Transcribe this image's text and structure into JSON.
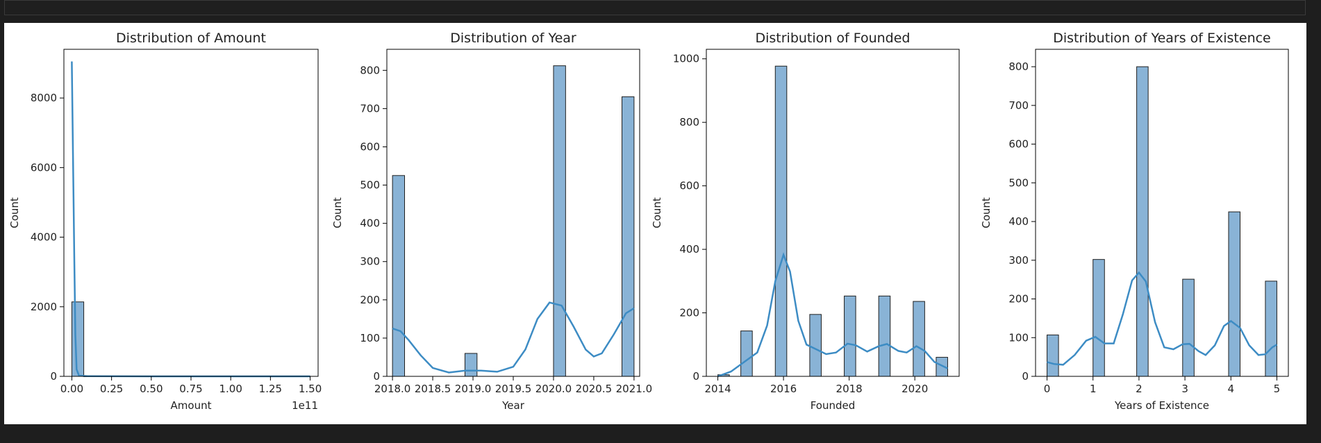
{
  "colors": {
    "bar_fill": "#89b3d6",
    "bar_edge": "#1f1f1f",
    "kde_line": "#3d8cc4",
    "frame": "#000000"
  },
  "chart_data": [
    {
      "type": "histogram",
      "title": "Distribution of Amount",
      "xlabel": "Amount",
      "ylabel": "Count",
      "x_offset_label": "1e11",
      "xlim": [
        -0.05,
        1.55
      ],
      "ylim": [
        0,
        9400
      ],
      "xticks": [
        0,
        0.25,
        0.5,
        0.75,
        1.0,
        1.25,
        1.5
      ],
      "xtick_labels": [
        "0.00",
        "0.25",
        "0.50",
        "0.75",
        "1.00",
        "1.25",
        "1.50"
      ],
      "yticks": [
        0,
        2000,
        4000,
        6000,
        8000
      ],
      "ytick_labels": [
        "0",
        "2000",
        "4000",
        "6000",
        "8000"
      ],
      "bars": [
        {
          "x0": 0.0,
          "x1": 0.075,
          "count": 2140
        },
        {
          "x0": 0.075,
          "x1": 0.15,
          "count": 2
        },
        {
          "x0": 0.15,
          "x1": 1.5,
          "count": 0
        }
      ],
      "kde": [
        [
          0,
          9050
        ],
        [
          0.007,
          6500
        ],
        [
          0.015,
          3500
        ],
        [
          0.022,
          1200
        ],
        [
          0.03,
          200
        ],
        [
          0.045,
          20
        ],
        [
          0.1,
          5
        ],
        [
          0.5,
          0
        ],
        [
          1.0,
          0
        ],
        [
          1.5,
          0
        ]
      ]
    },
    {
      "type": "histogram",
      "title": "Distribution of Year",
      "xlabel": "Year",
      "ylabel": "Count",
      "xlim": [
        2017.93,
        2021.07
      ],
      "ylim": [
        0,
        855
      ],
      "xticks": [
        2018.0,
        2018.5,
        2019.0,
        2019.5,
        2020.0,
        2020.5,
        2021.0
      ],
      "xtick_labels": [
        "2018.0",
        "2018.5",
        "2019.0",
        "2019.5",
        "2020.0",
        "2020.5",
        "2021.0"
      ],
      "yticks": [
        0,
        100,
        200,
        300,
        400,
        500,
        600,
        700,
        800
      ],
      "ytick_labels": [
        "0",
        "100",
        "200",
        "300",
        "400",
        "500",
        "600",
        "700",
        "800"
      ],
      "bars": [
        {
          "x0": 2018.0,
          "x1": 2018.15,
          "count": 525
        },
        {
          "x0": 2018.9,
          "x1": 2019.05,
          "count": 60
        },
        {
          "x0": 2020.0,
          "x1": 2020.15,
          "count": 812
        },
        {
          "x0": 2020.85,
          "x1": 2021.0,
          "count": 731
        }
      ],
      "kde": [
        [
          2018.0,
          125
        ],
        [
          2018.1,
          118
        ],
        [
          2018.2,
          95
        ],
        [
          2018.35,
          55
        ],
        [
          2018.5,
          22
        ],
        [
          2018.7,
          10
        ],
        [
          2018.9,
          15
        ],
        [
          2019.1,
          15
        ],
        [
          2019.3,
          12
        ],
        [
          2019.5,
          25
        ],
        [
          2019.65,
          70
        ],
        [
          2019.8,
          150
        ],
        [
          2019.95,
          193
        ],
        [
          2020.1,
          185
        ],
        [
          2020.25,
          130
        ],
        [
          2020.4,
          70
        ],
        [
          2020.5,
          52
        ],
        [
          2020.6,
          60
        ],
        [
          2020.75,
          110
        ],
        [
          2020.9,
          165
        ],
        [
          2021.0,
          178
        ]
      ]
    },
    {
      "type": "histogram",
      "title": "Distribution of Founded",
      "xlabel": "Founded",
      "ylabel": "Count",
      "xlim": [
        2013.65,
        2021.35
      ],
      "ylim": [
        0,
        1030
      ],
      "xticks": [
        2014,
        2016,
        2018,
        2020
      ],
      "xtick_labels": [
        "2014",
        "2016",
        "2018",
        "2020"
      ],
      "yticks": [
        0,
        200,
        400,
        600,
        800,
        1000
      ],
      "ytick_labels": [
        "0",
        "200",
        "400",
        "600",
        "800",
        "1000"
      ],
      "bars": [
        {
          "x0": 2014.0,
          "x1": 2014.35,
          "count": 5
        },
        {
          "x0": 2014.7,
          "x1": 2015.05,
          "count": 143
        },
        {
          "x0": 2015.75,
          "x1": 2016.1,
          "count": 977
        },
        {
          "x0": 2016.8,
          "x1": 2017.15,
          "count": 195
        },
        {
          "x0": 2017.85,
          "x1": 2018.2,
          "count": 253
        },
        {
          "x0": 2018.9,
          "x1": 2019.25,
          "count": 253
        },
        {
          "x0": 2019.95,
          "x1": 2020.3,
          "count": 236
        },
        {
          "x0": 2020.65,
          "x1": 2021.0,
          "count": 60
        }
      ],
      "kde": [
        [
          2014.0,
          0
        ],
        [
          2014.4,
          15
        ],
        [
          2014.8,
          45
        ],
        [
          2015.2,
          75
        ],
        [
          2015.5,
          160
        ],
        [
          2015.75,
          300
        ],
        [
          2016.0,
          383
        ],
        [
          2016.2,
          330
        ],
        [
          2016.45,
          175
        ],
        [
          2016.7,
          100
        ],
        [
          2017.0,
          85
        ],
        [
          2017.3,
          70
        ],
        [
          2017.6,
          75
        ],
        [
          2017.95,
          103
        ],
        [
          2018.2,
          98
        ],
        [
          2018.55,
          78
        ],
        [
          2018.9,
          95
        ],
        [
          2019.15,
          102
        ],
        [
          2019.5,
          80
        ],
        [
          2019.75,
          75
        ],
        [
          2020.05,
          95
        ],
        [
          2020.3,
          80
        ],
        [
          2020.6,
          45
        ],
        [
          2021.0,
          25
        ]
      ]
    },
    {
      "type": "histogram",
      "title": "Distribution of Years of Existence",
      "xlabel": "Years of Existence",
      "ylabel": "Count",
      "xlim": [
        -0.25,
        5.25
      ],
      "ylim": [
        0,
        845
      ],
      "xticks": [
        0,
        1,
        2,
        3,
        4,
        5
      ],
      "xtick_labels": [
        "0",
        "1",
        "2",
        "3",
        "4",
        "5"
      ],
      "yticks": [
        0,
        100,
        200,
        300,
        400,
        500,
        600,
        700,
        800
      ],
      "ytick_labels": [
        "0",
        "100",
        "200",
        "300",
        "400",
        "500",
        "600",
        "700",
        "800"
      ],
      "bars": [
        {
          "x0": 0.0,
          "x1": 0.25,
          "count": 107
        },
        {
          "x0": 1.0,
          "x1": 1.25,
          "count": 302
        },
        {
          "x0": 1.95,
          "x1": 2.2,
          "count": 800
        },
        {
          "x0": 2.95,
          "x1": 3.2,
          "count": 251
        },
        {
          "x0": 3.95,
          "x1": 4.2,
          "count": 425
        },
        {
          "x0": 4.75,
          "x1": 5.0,
          "count": 246
        }
      ],
      "kde": [
        [
          0.0,
          37
        ],
        [
          0.15,
          32
        ],
        [
          0.35,
          30
        ],
        [
          0.6,
          55
        ],
        [
          0.85,
          92
        ],
        [
          1.05,
          102
        ],
        [
          1.25,
          85
        ],
        [
          1.45,
          85
        ],
        [
          1.65,
          160
        ],
        [
          1.85,
          248
        ],
        [
          2.0,
          268
        ],
        [
          2.15,
          245
        ],
        [
          2.35,
          140
        ],
        [
          2.55,
          75
        ],
        [
          2.75,
          70
        ],
        [
          2.95,
          83
        ],
        [
          3.1,
          84
        ],
        [
          3.3,
          65
        ],
        [
          3.45,
          55
        ],
        [
          3.65,
          80
        ],
        [
          3.85,
          130
        ],
        [
          4.0,
          143
        ],
        [
          4.2,
          125
        ],
        [
          4.4,
          80
        ],
        [
          4.6,
          55
        ],
        [
          4.75,
          57
        ],
        [
          4.9,
          75
        ],
        [
          5.0,
          82
        ]
      ]
    }
  ]
}
